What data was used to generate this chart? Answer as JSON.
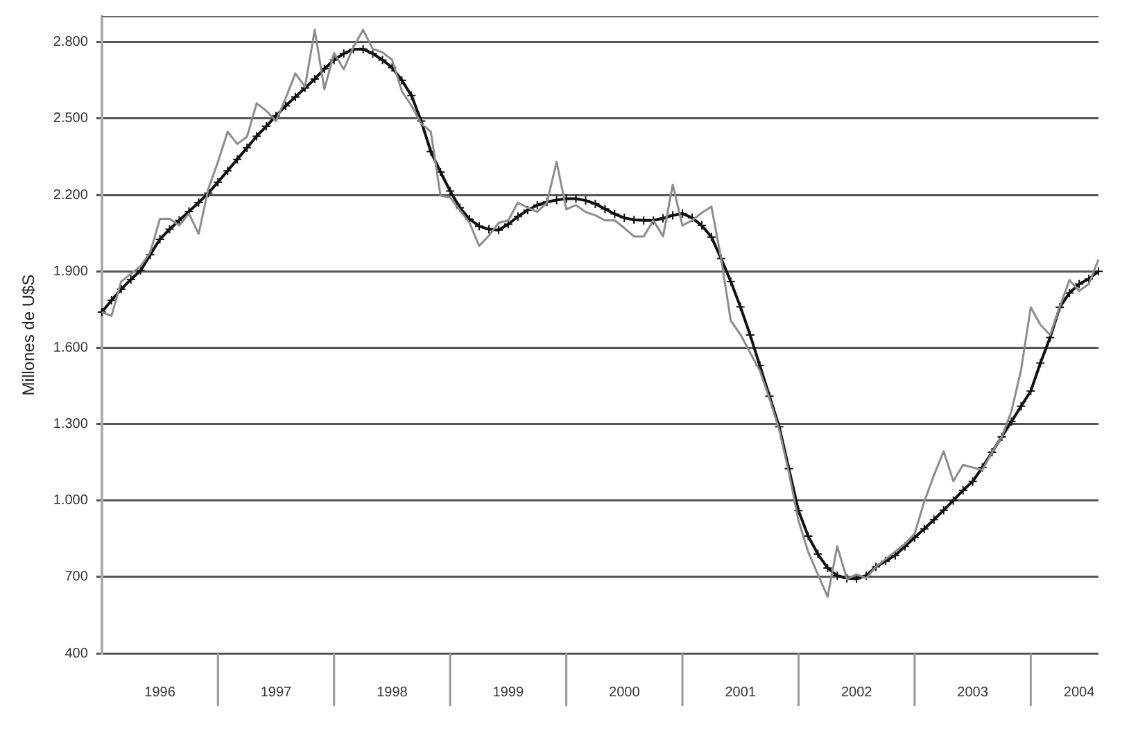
{
  "chart_data": {
    "type": "line",
    "ylabel": "Millones de U$S",
    "ylim": [
      400,
      2900
    ],
    "yticks": [
      {
        "value": 400,
        "label": "400"
      },
      {
        "value": 700,
        "label": "700"
      },
      {
        "value": 1000,
        "label": "1.000"
      },
      {
        "value": 1300,
        "label": "1.300"
      },
      {
        "value": 1600,
        "label": "1.600"
      },
      {
        "value": 1900,
        "label": "1.900"
      },
      {
        "value": 2200,
        "label": "2.200"
      },
      {
        "value": 2500,
        "label": "2.500"
      },
      {
        "value": 2800,
        "label": "2.800"
      }
    ],
    "categories": [
      null,
      null,
      null,
      null,
      null,
      null,
      "1996",
      null,
      null,
      null,
      null,
      null,
      null,
      null,
      null,
      null,
      null,
      null,
      "1997",
      null,
      null,
      null,
      null,
      null,
      null,
      null,
      null,
      null,
      null,
      null,
      "1998",
      null,
      null,
      null,
      null,
      null,
      null,
      null,
      null,
      null,
      null,
      null,
      "1999",
      null,
      null,
      null,
      null,
      null,
      null,
      null,
      null,
      null,
      null,
      null,
      "2000",
      null,
      null,
      null,
      null,
      null,
      null,
      null,
      null,
      null,
      null,
      null,
      "2001",
      null,
      null,
      null,
      null,
      null,
      null,
      null,
      null,
      null,
      null,
      null,
      "2002",
      null,
      null,
      null,
      null,
      null,
      null,
      null,
      null,
      null,
      null,
      null,
      "2003",
      null,
      null,
      null,
      null,
      null,
      null,
      null,
      null,
      null,
      null,
      "2004",
      null,
      null
    ],
    "grid": "y",
    "legend": false,
    "series": [
      {
        "color": "#8c8c8c",
        "marker": "none",
        "values": [
          1740,
          1725,
          1860,
          1890,
          1920,
          1975,
          2106,
          2106,
          2080,
          2127,
          2047,
          2223,
          2330,
          2448,
          2400,
          2428,
          2560,
          2530,
          2490,
          2580,
          2677,
          2624,
          2848,
          2615,
          2757,
          2693,
          2780,
          2848,
          2773,
          2760,
          2730,
          2608,
          2550,
          2480,
          2448,
          2197,
          2190,
          2140,
          2090,
          2000,
          2040,
          2090,
          2100,
          2170,
          2150,
          2133,
          2170,
          2330,
          2143,
          2160,
          2133,
          2120,
          2100,
          2100,
          2070,
          2037,
          2037,
          2100,
          2037,
          2240,
          2080,
          2100,
          2130,
          2154,
          1950,
          1706,
          1652,
          1580,
          1510,
          1400,
          1279,
          1110,
          920,
          798,
          710,
          622,
          820,
          692,
          710,
          695,
          740,
          770,
          800,
          830,
          870,
          996,
          1100,
          1193,
          1076,
          1140,
          1130,
          1120,
          1190,
          1250,
          1350,
          1513,
          1759,
          1690,
          1650,
          1760,
          1866,
          1823,
          1850,
          1946
        ]
      },
      {
        "color": "#111111",
        "marker": "cross",
        "values": [
          1740,
          1786,
          1830,
          1868,
          1903,
          1965,
          2026,
          2065,
          2100,
          2135,
          2170,
          2207,
          2250,
          2295,
          2340,
          2385,
          2430,
          2470,
          2510,
          2550,
          2585,
          2620,
          2655,
          2695,
          2730,
          2755,
          2772,
          2773,
          2755,
          2730,
          2700,
          2650,
          2590,
          2490,
          2370,
          2290,
          2215,
          2150,
          2105,
          2077,
          2065,
          2062,
          2085,
          2115,
          2140,
          2160,
          2172,
          2180,
          2185,
          2185,
          2178,
          2165,
          2145,
          2125,
          2110,
          2102,
          2100,
          2100,
          2108,
          2120,
          2127,
          2110,
          2080,
          2035,
          1950,
          1860,
          1760,
          1650,
          1530,
          1410,
          1290,
          1125,
          960,
          860,
          790,
          735,
          705,
          695,
          693,
          705,
          740,
          762,
          785,
          820,
          855,
          889,
          925,
          962,
          1000,
          1040,
          1075,
          1130,
          1190,
          1250,
          1310,
          1370,
          1430,
          1540,
          1640,
          1759,
          1815,
          1850,
          1870,
          1900
        ]
      }
    ]
  }
}
